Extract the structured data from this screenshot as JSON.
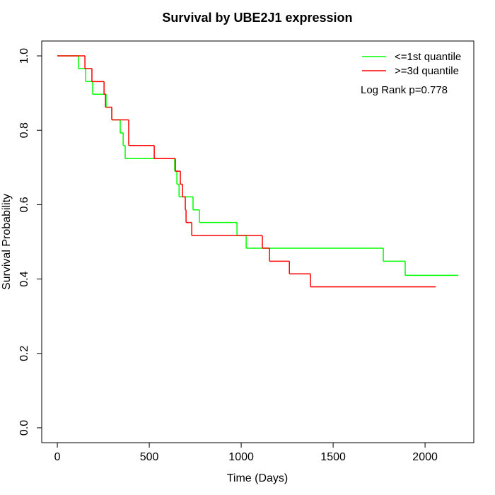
{
  "chart_data": {
    "type": "step",
    "title": "Survival by UBE2J1 expression",
    "x_label": "Time (Days)",
    "y_label": "Survival Probability",
    "annotation": "Log Rank p=0.778",
    "xlim": [
      -85,
      2265
    ],
    "ylim": [
      -0.04,
      1.04
    ],
    "xticks": [
      0,
      500,
      1000,
      1500,
      2000
    ],
    "yticks": [
      {
        "value": 0,
        "label": "0.0"
      },
      {
        "value": 0.2,
        "label": "0.2"
      },
      {
        "value": 0.4,
        "label": "0.4"
      },
      {
        "value": 0.6,
        "label": "0.6"
      },
      {
        "value": 0.8,
        "label": "0.8"
      },
      {
        "value": 1,
        "label": "1.0"
      }
    ],
    "legend": "top-right",
    "series": [
      {
        "name": "<=1st quantile",
        "color": "#00ff00",
        "x": [
          0,
          115,
          154,
          192,
          265,
          296,
          342,
          358,
          369,
          638,
          650,
          662,
          738,
          773,
          977,
          1027,
          1773,
          1892,
          2181
        ],
        "values": [
          1.0,
          0.966,
          0.931,
          0.897,
          0.862,
          0.828,
          0.793,
          0.759,
          0.724,
          0.69,
          0.655,
          0.621,
          0.586,
          0.552,
          0.517,
          0.483,
          0.448,
          0.41,
          0.41
        ]
      },
      {
        "name": ">=3d quantile",
        "color": "#ff0000",
        "x": [
          0,
          150,
          188,
          254,
          262,
          296,
          388,
          527,
          642,
          669,
          681,
          696,
          700,
          731,
          1115,
          1154,
          1262,
          1377,
          2058
        ],
        "values": [
          1.0,
          0.966,
          0.931,
          0.897,
          0.862,
          0.828,
          0.759,
          0.724,
          0.69,
          0.655,
          0.621,
          0.586,
          0.552,
          0.517,
          0.483,
          0.448,
          0.414,
          0.379,
          0.379
        ]
      }
    ]
  }
}
